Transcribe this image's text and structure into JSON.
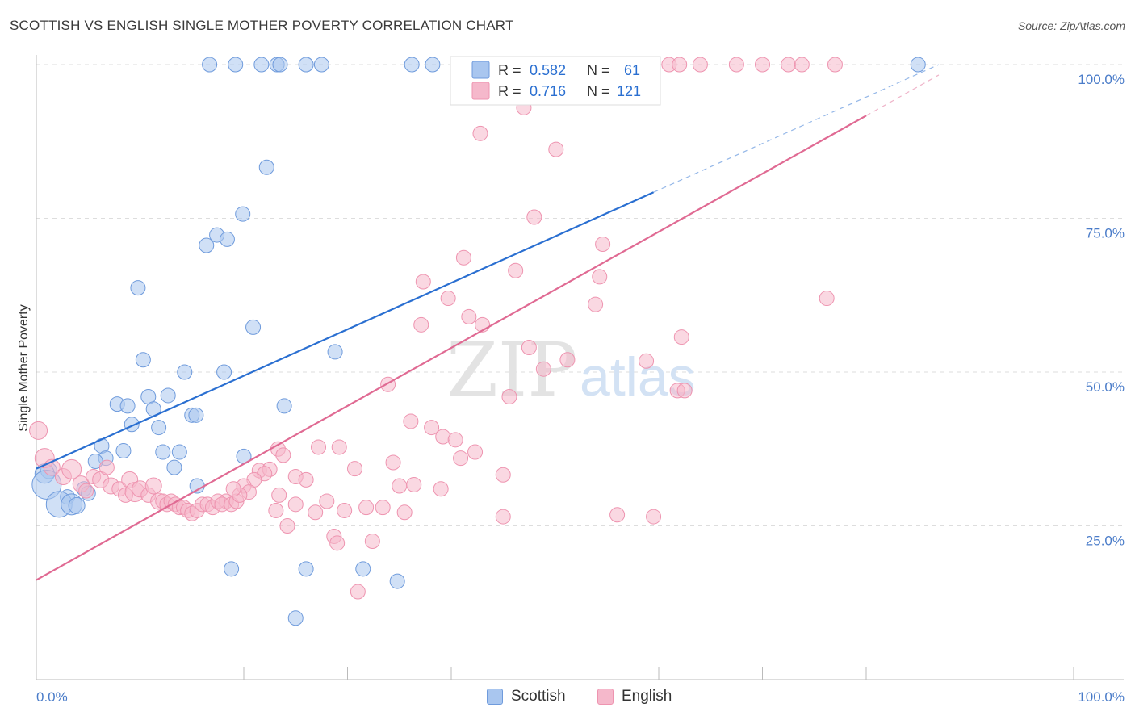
{
  "title": "SCOTTISH VS ENGLISH SINGLE MOTHER POVERTY CORRELATION CHART",
  "source": "Source: ZipAtlas.com",
  "watermark": {
    "zip": "ZIP",
    "atlas": "atlas"
  },
  "colors": {
    "scottish_fill": "#a9c6ef",
    "scottish_stroke": "#6f9bdc",
    "scottish_line": "#2a6fd1",
    "english_fill": "#f5b8cb",
    "english_stroke": "#ee94b0",
    "english_line": "#e06a93",
    "tick_text": "#4a7cc9",
    "grid": "#dddddd"
  },
  "legend": {
    "rows": [
      {
        "series": "scottish",
        "r_label": "R =",
        "r_value": "0.582",
        "n_label": "N =",
        "n_value": "61"
      },
      {
        "series": "english",
        "r_label": "R =",
        "r_value": "0.716",
        "n_label": "N =",
        "n_value": "121"
      }
    ]
  },
  "bottom_legend": [
    {
      "series": "scottish",
      "label": "Scottish"
    },
    {
      "series": "english",
      "label": "English"
    }
  ],
  "chart_data": {
    "type": "scatter",
    "title": "SCOTTISH VS ENGLISH SINGLE MOTHER POVERTY CORRELATION CHART",
    "xlabel": "",
    "ylabel": "Single Mother Poverty",
    "xlim": [
      0,
      1
    ],
    "ylim": [
      0,
      1
    ],
    "x_tick_labels": [
      {
        "v": 0,
        "label": "0.0%"
      },
      {
        "v": 1,
        "label": "100.0%"
      }
    ],
    "y_tick_labels": [
      {
        "v": 0.25,
        "label": "25.0%"
      },
      {
        "v": 0.5,
        "label": "50.0%"
      },
      {
        "v": 0.75,
        "label": "75.0%"
      },
      {
        "v": 1.0,
        "label": "100.0%"
      }
    ],
    "series": [
      {
        "name": "Scottish",
        "key": "scottish",
        "trend": {
          "x0": 0.0,
          "y0": 0.343,
          "x1": 0.87,
          "y1": 1.0,
          "solid_until": 0.595
        },
        "points": [
          [
            0.167,
            1.0,
            9
          ],
          [
            0.192,
            1.0,
            9
          ],
          [
            0.217,
            1.0,
            9
          ],
          [
            0.232,
            1.0,
            9
          ],
          [
            0.235,
            1.0,
            9
          ],
          [
            0.26,
            1.0,
            9
          ],
          [
            0.275,
            1.0,
            9
          ],
          [
            0.362,
            1.0,
            9
          ],
          [
            0.382,
            1.0,
            9
          ],
          [
            0.412,
            1.0,
            9
          ],
          [
            0.435,
            1.0,
            9
          ],
          [
            0.463,
            1.0,
            9
          ],
          [
            0.49,
            1.0,
            9
          ],
          [
            0.507,
            1.0,
            9
          ],
          [
            0.59,
            1.0,
            9
          ],
          [
            0.85,
            1.0,
            9
          ],
          [
            0.222,
            0.833,
            9
          ],
          [
            0.199,
            0.757,
            9
          ],
          [
            0.174,
            0.723,
            9
          ],
          [
            0.184,
            0.716,
            9
          ],
          [
            0.164,
            0.706,
            9
          ],
          [
            0.098,
            0.637,
            9
          ],
          [
            0.209,
            0.573,
            9
          ],
          [
            0.288,
            0.533,
            9
          ],
          [
            0.103,
            0.52,
            9
          ],
          [
            0.143,
            0.5,
            9
          ],
          [
            0.181,
            0.5,
            9
          ],
          [
            0.108,
            0.46,
            9
          ],
          [
            0.127,
            0.462,
            9
          ],
          [
            0.078,
            0.448,
            9
          ],
          [
            0.088,
            0.445,
            9
          ],
          [
            0.239,
            0.445,
            9
          ],
          [
            0.113,
            0.44,
            9
          ],
          [
            0.15,
            0.43,
            9
          ],
          [
            0.154,
            0.43,
            9
          ],
          [
            0.092,
            0.415,
            9
          ],
          [
            0.118,
            0.41,
            9
          ],
          [
            0.063,
            0.38,
            9
          ],
          [
            0.084,
            0.372,
            9
          ],
          [
            0.122,
            0.37,
            9
          ],
          [
            0.138,
            0.37,
            9
          ],
          [
            0.2,
            0.363,
            9
          ],
          [
            0.067,
            0.36,
            9
          ],
          [
            0.057,
            0.355,
            9
          ],
          [
            0.133,
            0.345,
            9
          ],
          [
            0.012,
            0.34,
            10
          ],
          [
            0.008,
            0.335,
            12
          ],
          [
            0.155,
            0.315,
            9
          ],
          [
            0.046,
            0.31,
            9
          ],
          [
            0.05,
            0.303,
            9
          ],
          [
            0.03,
            0.297,
            9
          ],
          [
            0.01,
            0.317,
            18
          ],
          [
            0.022,
            0.285,
            16
          ],
          [
            0.034,
            0.285,
            13
          ],
          [
            0.039,
            0.283,
            10
          ],
          [
            0.188,
            0.18,
            9
          ],
          [
            0.26,
            0.18,
            9
          ],
          [
            0.315,
            0.18,
            9
          ],
          [
            0.348,
            0.16,
            9
          ],
          [
            0.25,
            0.1,
            9
          ]
        ]
      },
      {
        "name": "English",
        "key": "english",
        "trend": {
          "x0": 0.0,
          "y0": 0.162,
          "x1": 0.87,
          "y1": 0.983,
          "solid_until": 0.8
        },
        "points": [
          [
            0.414,
            1.0,
            9
          ],
          [
            0.45,
            1.0,
            9
          ],
          [
            0.473,
            1.0,
            9
          ],
          [
            0.497,
            1.0,
            9
          ],
          [
            0.51,
            1.0,
            9
          ],
          [
            0.53,
            1.0,
            9
          ],
          [
            0.585,
            1.0,
            9
          ],
          [
            0.61,
            1.0,
            9
          ],
          [
            0.62,
            1.0,
            9
          ],
          [
            0.64,
            1.0,
            9
          ],
          [
            0.675,
            1.0,
            9
          ],
          [
            0.7,
            1.0,
            9
          ],
          [
            0.725,
            1.0,
            9
          ],
          [
            0.738,
            1.0,
            9
          ],
          [
            0.77,
            1.0,
            9
          ],
          [
            0.47,
            0.93,
            9
          ],
          [
            0.428,
            0.888,
            9
          ],
          [
            0.501,
            0.862,
            9
          ],
          [
            0.48,
            0.752,
            9
          ],
          [
            0.546,
            0.708,
            9
          ],
          [
            0.412,
            0.686,
            9
          ],
          [
            0.462,
            0.665,
            9
          ],
          [
            0.543,
            0.655,
            9
          ],
          [
            0.373,
            0.647,
            9
          ],
          [
            0.762,
            0.62,
            9
          ],
          [
            0.397,
            0.62,
            9
          ],
          [
            0.539,
            0.61,
            9
          ],
          [
            0.417,
            0.59,
            9
          ],
          [
            0.43,
            0.577,
            9
          ],
          [
            0.371,
            0.577,
            9
          ],
          [
            0.622,
            0.557,
            9
          ],
          [
            0.475,
            0.54,
            9
          ],
          [
            0.512,
            0.52,
            9
          ],
          [
            0.588,
            0.518,
            9
          ],
          [
            0.489,
            0.505,
            9
          ],
          [
            0.339,
            0.48,
            9
          ],
          [
            0.618,
            0.47,
            9
          ],
          [
            0.456,
            0.46,
            9
          ],
          [
            0.361,
            0.42,
            9
          ],
          [
            0.381,
            0.41,
            9
          ],
          [
            0.392,
            0.395,
            9
          ],
          [
            0.404,
            0.39,
            9
          ],
          [
            0.272,
            0.378,
            9
          ],
          [
            0.292,
            0.378,
            9
          ],
          [
            0.233,
            0.375,
            9
          ],
          [
            0.423,
            0.37,
            9
          ],
          [
            0.238,
            0.365,
            9
          ],
          [
            0.409,
            0.36,
            9
          ],
          [
            0.344,
            0.353,
            9
          ],
          [
            0.307,
            0.343,
            9
          ],
          [
            0.215,
            0.34,
            9
          ],
          [
            0.225,
            0.342,
            9
          ],
          [
            0.22,
            0.335,
            9
          ],
          [
            0.45,
            0.333,
            9
          ],
          [
            0.25,
            0.33,
            9
          ],
          [
            0.26,
            0.325,
            9
          ],
          [
            0.21,
            0.325,
            9
          ],
          [
            0.2,
            0.315,
            9
          ],
          [
            0.35,
            0.315,
            9
          ],
          [
            0.364,
            0.317,
            9
          ],
          [
            0.39,
            0.31,
            9
          ],
          [
            0.205,
            0.305,
            9
          ],
          [
            0.183,
            0.29,
            9
          ],
          [
            0.234,
            0.3,
            9
          ],
          [
            0.28,
            0.29,
            9
          ],
          [
            0.25,
            0.285,
            9
          ],
          [
            0.334,
            0.28,
            9
          ],
          [
            0.318,
            0.28,
            9
          ],
          [
            0.231,
            0.275,
            9
          ],
          [
            0.269,
            0.272,
            9
          ],
          [
            0.297,
            0.275,
            9
          ],
          [
            0.355,
            0.272,
            9
          ],
          [
            0.56,
            0.268,
            9
          ],
          [
            0.45,
            0.265,
            9
          ],
          [
            0.242,
            0.25,
            9
          ],
          [
            0.287,
            0.233,
            9
          ],
          [
            0.29,
            0.222,
            9
          ],
          [
            0.324,
            0.225,
            9
          ],
          [
            0.31,
            0.143,
            9
          ],
          [
            0.002,
            0.405,
            11
          ],
          [
            0.008,
            0.36,
            12
          ],
          [
            0.015,
            0.345,
            10
          ],
          [
            0.026,
            0.33,
            10
          ],
          [
            0.034,
            0.342,
            12
          ],
          [
            0.043,
            0.318,
            10
          ],
          [
            0.048,
            0.307,
            9
          ],
          [
            0.055,
            0.33,
            9
          ],
          [
            0.062,
            0.325,
            10
          ],
          [
            0.068,
            0.345,
            9
          ],
          [
            0.072,
            0.315,
            10
          ],
          [
            0.08,
            0.31,
            9
          ],
          [
            0.086,
            0.3,
            9
          ],
          [
            0.09,
            0.325,
            10
          ],
          [
            0.095,
            0.305,
            12
          ],
          [
            0.1,
            0.31,
            10
          ],
          [
            0.108,
            0.3,
            9
          ],
          [
            0.113,
            0.315,
            10
          ],
          [
            0.118,
            0.29,
            10
          ],
          [
            0.122,
            0.29,
            9
          ],
          [
            0.126,
            0.285,
            9
          ],
          [
            0.13,
            0.29,
            9
          ],
          [
            0.134,
            0.285,
            9
          ],
          [
            0.138,
            0.28,
            9
          ],
          [
            0.142,
            0.28,
            9
          ],
          [
            0.146,
            0.275,
            9
          ],
          [
            0.15,
            0.27,
            9
          ],
          [
            0.155,
            0.275,
            9
          ],
          [
            0.16,
            0.285,
            9
          ],
          [
            0.165,
            0.285,
            9
          ],
          [
            0.17,
            0.28,
            9
          ],
          [
            0.175,
            0.29,
            9
          ],
          [
            0.179,
            0.285,
            9
          ],
          [
            0.188,
            0.285,
            9
          ],
          [
            0.193,
            0.29,
            9
          ],
          [
            0.196,
            0.3,
            9
          ],
          [
            0.19,
            0.31,
            9
          ],
          [
            0.595,
            0.265,
            9
          ],
          [
            0.625,
            0.47,
            9
          ]
        ]
      }
    ]
  }
}
